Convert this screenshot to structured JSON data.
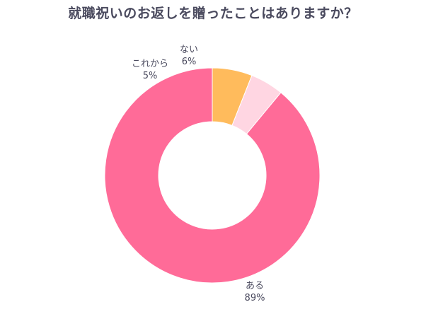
{
  "chart_data": {
    "type": "pie",
    "title": "就職祝いのお返しを贈ったことはありますか？",
    "donut": true,
    "slices": [
      {
        "label": "ある",
        "value": 89,
        "value_label": "89%",
        "color": "#ff6b98"
      },
      {
        "label": "これから",
        "value": 5,
        "value_label": "5%",
        "color": "#ffd6e2"
      },
      {
        "label": "ない",
        "value": 6,
        "value_label": "6%",
        "color": "#ffbb5c"
      }
    ],
    "start": "12 o'clock",
    "direction": "clockwise"
  }
}
